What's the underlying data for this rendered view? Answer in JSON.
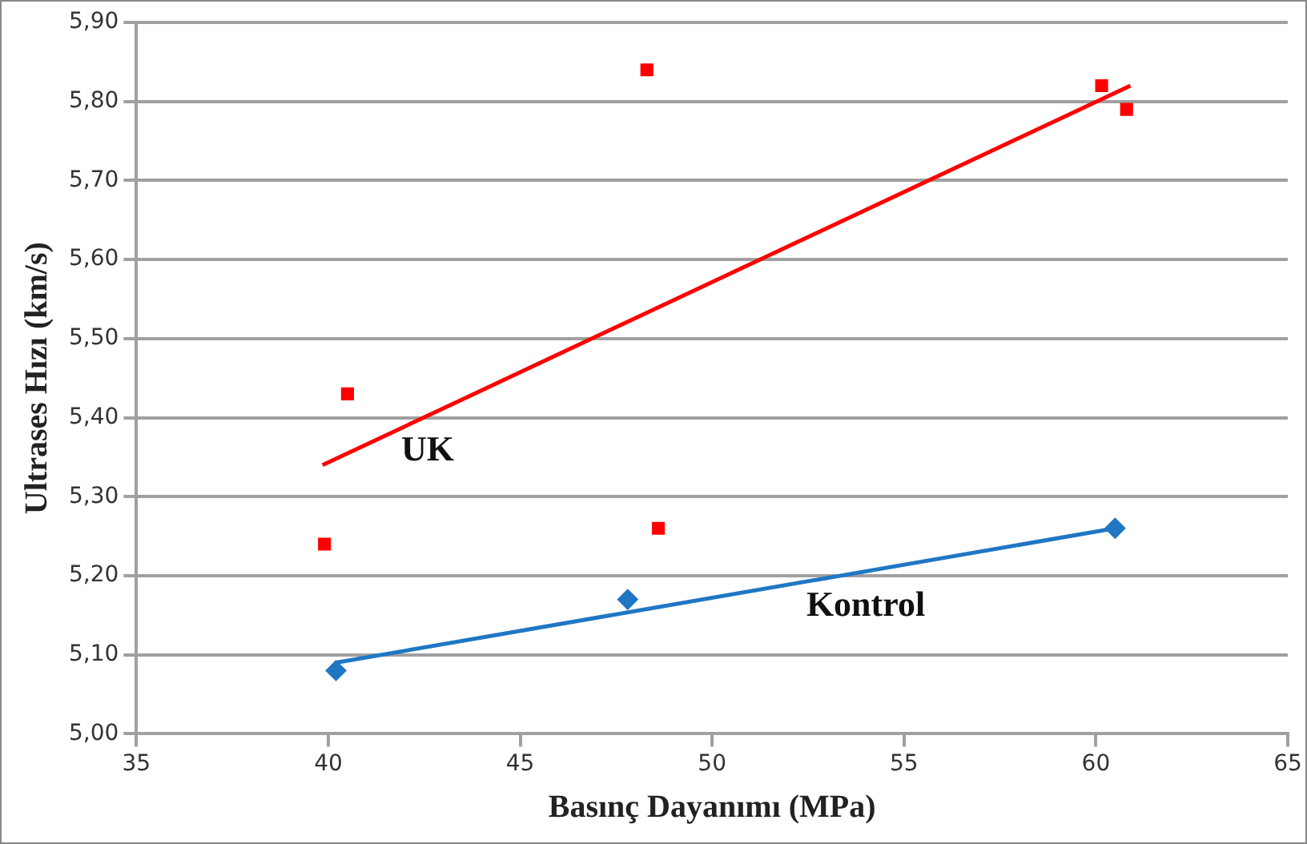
{
  "chart_data": {
    "type": "scatter",
    "xlabel": "Basınç Dayanımı (MPa)",
    "ylabel": "Ultrases Hızı (km/s)",
    "xlim": [
      35,
      65
    ],
    "xticks": [
      35,
      40,
      45,
      50,
      55,
      60,
      65
    ],
    "ylim": [
      5.0,
      5.9
    ],
    "yticks": [
      {
        "value": 5.0,
        "label": "5,00"
      },
      {
        "value": 5.1,
        "label": "5,10"
      },
      {
        "value": 5.2,
        "label": "5,20"
      },
      {
        "value": 5.3,
        "label": "5,30"
      },
      {
        "value": 5.4,
        "label": "5,40"
      },
      {
        "value": 5.5,
        "label": "5,50"
      },
      {
        "value": 5.6,
        "label": "5,60"
      },
      {
        "value": 5.7,
        "label": "5,70"
      },
      {
        "value": 5.8,
        "label": "5,80"
      },
      {
        "value": 5.9,
        "label": "5,90"
      }
    ],
    "grid": "y",
    "legend": false,
    "series": [
      {
        "type": "scatter",
        "marker": "square",
        "color": "#ff0000",
        "x": [
          39.9,
          40.5,
          48.3,
          48.6,
          60.15,
          60.8
        ],
        "values": [
          5.24,
          5.43,
          5.84,
          5.26,
          5.82,
          5.79
        ]
      },
      {
        "type": "scatter",
        "marker": "diamond",
        "color": "#1f77c4",
        "x": [
          40.2,
          47.8,
          60.5
        ],
        "values": [
          5.08,
          5.17,
          5.26
        ]
      },
      {
        "name": "UK",
        "type": "line",
        "marker": "none",
        "color": "#ff0000",
        "x": [
          39.85,
          60.9
        ],
        "values": [
          5.34,
          5.82
        ]
      },
      {
        "name": "Kontrol",
        "type": "line",
        "marker": "none",
        "color": "#1f77c4",
        "x": [
          40.2,
          60.5
        ],
        "values": [
          5.09,
          5.26
        ]
      }
    ]
  }
}
